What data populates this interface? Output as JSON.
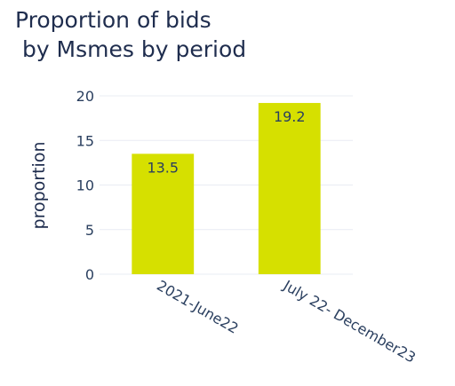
{
  "chart_data": {
    "type": "bar",
    "title_lines": [
      "Proportion of bids",
      " by Msmes by period"
    ],
    "xlabel": "",
    "ylabel": "proportion",
    "categories": [
      "2021-June22",
      "July 22- December23"
    ],
    "values": [
      13.5,
      19.2
    ],
    "data_labels": [
      "13.5",
      "19.2"
    ],
    "yticks": [
      "0",
      "5",
      "10",
      "15",
      "20"
    ],
    "ylim": [
      0,
      20
    ],
    "grid": true,
    "bar_color": "#d6e000"
  }
}
